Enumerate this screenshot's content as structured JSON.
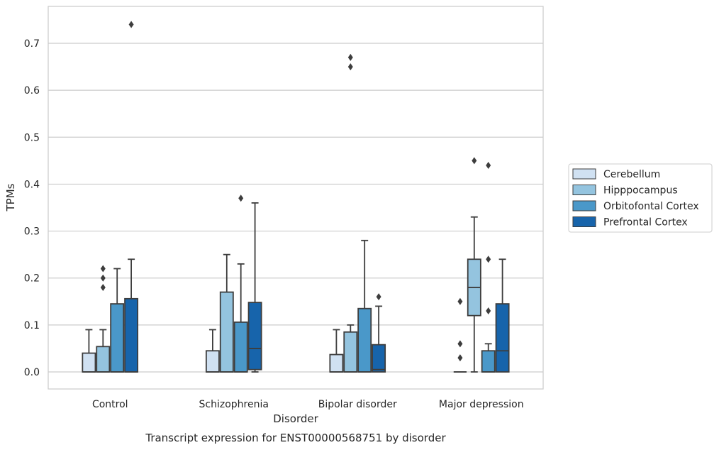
{
  "chart_data": {
    "type": "box",
    "xlabel": "Disorder",
    "ylabel": "TPMs",
    "caption": "Transcript expression for ENST00000568751 by disorder",
    "ylim": [
      -0.037,
      0.775
    ],
    "yticks": [
      "0.0",
      "0.1",
      "0.2",
      "0.3",
      "0.4",
      "0.5",
      "0.6",
      "0.7"
    ],
    "grid": true,
    "legend_position": "right",
    "categories": [
      "Control",
      "Schizophrenia",
      "Bipolar disorder",
      "Major depression"
    ],
    "series": [
      {
        "name": "Cerebellum",
        "color": "#d0e1f2",
        "boxes": [
          {
            "q1": 0.0,
            "median": 0.0,
            "q3": 0.04,
            "whisker_low": 0.0,
            "whisker_high": 0.09,
            "outliers": []
          },
          {
            "q1": 0.0,
            "median": 0.0,
            "q3": 0.045,
            "whisker_low": 0.0,
            "whisker_high": 0.09,
            "outliers": []
          },
          {
            "q1": 0.0,
            "median": 0.0,
            "q3": 0.037,
            "whisker_low": 0.0,
            "whisker_high": 0.09,
            "outliers": []
          },
          {
            "q1": 0.0,
            "median": 0.0,
            "q3": 0.0,
            "whisker_low": 0.0,
            "whisker_high": 0.0,
            "outliers": []
          }
        ]
      },
      {
        "name": "Hipppocampus",
        "color": "#94c4df",
        "boxes": [
          {
            "q1": 0.0,
            "median": 0.0,
            "q3": 0.054,
            "whisker_low": 0.0,
            "whisker_high": 0.09,
            "outliers": [
              0.18,
              0.2,
              0.22
            ]
          },
          {
            "q1": 0.0,
            "median": 0.0,
            "q3": 0.17,
            "whisker_low": 0.0,
            "whisker_high": 0.25,
            "outliers": []
          },
          {
            "q1": 0.0,
            "median": 0.0,
            "q3": 0.085,
            "whisker_low": 0.0,
            "whisker_high": 0.1,
            "outliers": [
              0.65,
              0.67
            ]
          },
          {
            "q1": 0.12,
            "median": 0.18,
            "q3": 0.24,
            "whisker_low": 0.0,
            "whisker_high": 0.33,
            "outliers": [
              0.45
            ]
          }
        ]
      },
      {
        "name": "Orbitofontal Cortex",
        "color": "#4a98c9",
        "boxes": [
          {
            "q1": 0.0,
            "median": 0.0,
            "q3": 0.145,
            "whisker_low": 0.0,
            "whisker_high": 0.22,
            "outliers": []
          },
          {
            "q1": 0.0,
            "median": 0.0,
            "q3": 0.106,
            "whisker_low": 0.0,
            "whisker_high": 0.23,
            "outliers": [
              0.37
            ]
          },
          {
            "q1": 0.0,
            "median": 0.0,
            "q3": 0.135,
            "whisker_low": 0.0,
            "whisker_high": 0.28,
            "outliers": []
          },
          {
            "q1": 0.0,
            "median": 0.0,
            "q3": 0.045,
            "whisker_low": 0.0,
            "whisker_high": 0.06,
            "outliers": [
              0.13,
              0.24,
              0.44
            ]
          }
        ]
      },
      {
        "name": "Prefrontal Cortex",
        "color": "#1764ab",
        "boxes": [
          {
            "q1": 0.0,
            "median": 0.0,
            "q3": 0.156,
            "whisker_low": 0.0,
            "whisker_high": 0.24,
            "outliers": [
              0.74
            ]
          },
          {
            "q1": 0.005,
            "median": 0.05,
            "q3": 0.148,
            "whisker_low": 0.0,
            "whisker_high": 0.36,
            "outliers": []
          },
          {
            "q1": 0.0,
            "median": 0.005,
            "q3": 0.058,
            "whisker_low": 0.0,
            "whisker_high": 0.14,
            "outliers": [
              0.16
            ]
          },
          {
            "q1": 0.0,
            "median": 0.045,
            "q3": 0.145,
            "whisker_low": 0.0,
            "whisker_high": 0.24,
            "outliers": []
          }
        ]
      }
    ],
    "extra_outliers": [
      {
        "category": "Major depression",
        "series": "Cerebellum",
        "values": [
          0.03,
          0.06,
          0.15
        ]
      }
    ]
  }
}
